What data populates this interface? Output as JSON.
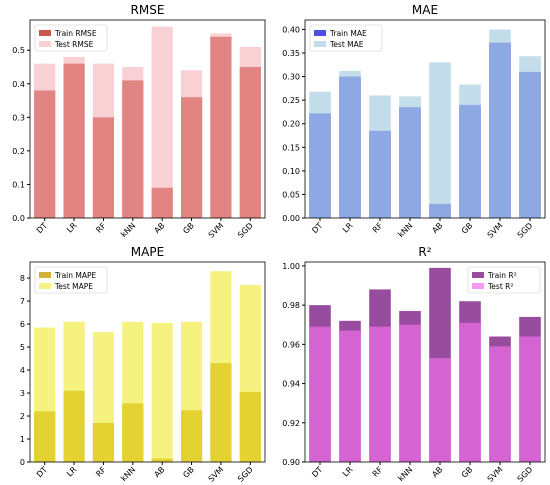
{
  "chart_data": [
    {
      "type": "bar",
      "title": "RMSE",
      "categories": [
        "DT",
        "LR",
        "RF",
        "kNN",
        "AB",
        "GB",
        "SVM",
        "SGD"
      ],
      "series": [
        {
          "name": "Train RMSE",
          "values": [
            0.38,
            0.46,
            0.3,
            0.41,
            0.09,
            0.36,
            0.54,
            0.45
          ],
          "color": "#c0392b",
          "opacity": 0.85
        },
        {
          "name": "Test RMSE",
          "values": [
            0.46,
            0.48,
            0.46,
            0.45,
            0.57,
            0.44,
            0.55,
            0.51
          ],
          "color": "#f4a9b1",
          "opacity": 0.55
        }
      ],
      "yticks": [
        "0.0",
        "0.1",
        "0.2",
        "0.3",
        "0.4",
        "0.5"
      ],
      "ylim": [
        0,
        0.59
      ],
      "legend": "top-left"
    },
    {
      "type": "bar",
      "title": "MAE",
      "categories": [
        "DT",
        "LR",
        "RF",
        "kNN",
        "AB",
        "GB",
        "SVM",
        "SGD"
      ],
      "series": [
        {
          "name": "Train MAE",
          "values": [
            0.222,
            0.3,
            0.185,
            0.235,
            0.03,
            0.24,
            0.372,
            0.31
          ],
          "color": "#2222dd",
          "opacity": 0.8
        },
        {
          "name": "Test MAE",
          "values": [
            0.268,
            0.312,
            0.26,
            0.258,
            0.33,
            0.283,
            0.4,
            0.343
          ],
          "color": "#a9cfe3",
          "opacity": 0.7
        }
      ],
      "yticks": [
        "0.00",
        "0.05",
        "0.10",
        "0.15",
        "0.20",
        "0.25",
        "0.30",
        "0.35",
        "0.40"
      ],
      "ylim": [
        0,
        0.42
      ],
      "legend": "top-left"
    },
    {
      "type": "bar",
      "title": "MAPE",
      "categories": [
        "DT",
        "LR",
        "RF",
        "kNN",
        "AB",
        "GB",
        "SVM",
        "SGD"
      ],
      "series": [
        {
          "name": "Train MAPE",
          "values": [
            2.2,
            3.1,
            1.7,
            2.55,
            0.15,
            2.25,
            4.3,
            3.05
          ],
          "color": "#c9a21a",
          "opacity": 0.85
        },
        {
          "name": "Test MAPE",
          "values": [
            5.85,
            6.1,
            5.65,
            6.1,
            6.05,
            6.1,
            8.3,
            7.7
          ],
          "color": "#eeea2a",
          "opacity": 0.6
        }
      ],
      "yticks": [
        "0",
        "1",
        "2",
        "3",
        "4",
        "5",
        "6",
        "7",
        "8"
      ],
      "ylim": [
        0,
        8.7
      ],
      "legend": "top-left"
    },
    {
      "type": "bar",
      "title": "R²",
      "categories": [
        "DT",
        "LR",
        "RF",
        "kNN",
        "AB",
        "GB",
        "SVM",
        "SGD"
      ],
      "series": [
        {
          "name": "Train R²",
          "values": [
            0.98,
            0.972,
            0.988,
            0.977,
            0.999,
            0.982,
            0.964,
            0.974
          ],
          "color": "#7e1f86",
          "opacity": 0.8
        },
        {
          "name": "Test R²",
          "values": [
            0.969,
            0.967,
            0.969,
            0.97,
            0.953,
            0.971,
            0.959,
            0.964
          ],
          "color": "#ef6fe9",
          "opacity": 0.7
        }
      ],
      "yticks": [
        "0.90",
        "0.92",
        "0.94",
        "0.96",
        "0.98",
        "1.00"
      ],
      "ylim": [
        0.9,
        1.002
      ],
      "legend": "top-right"
    }
  ]
}
